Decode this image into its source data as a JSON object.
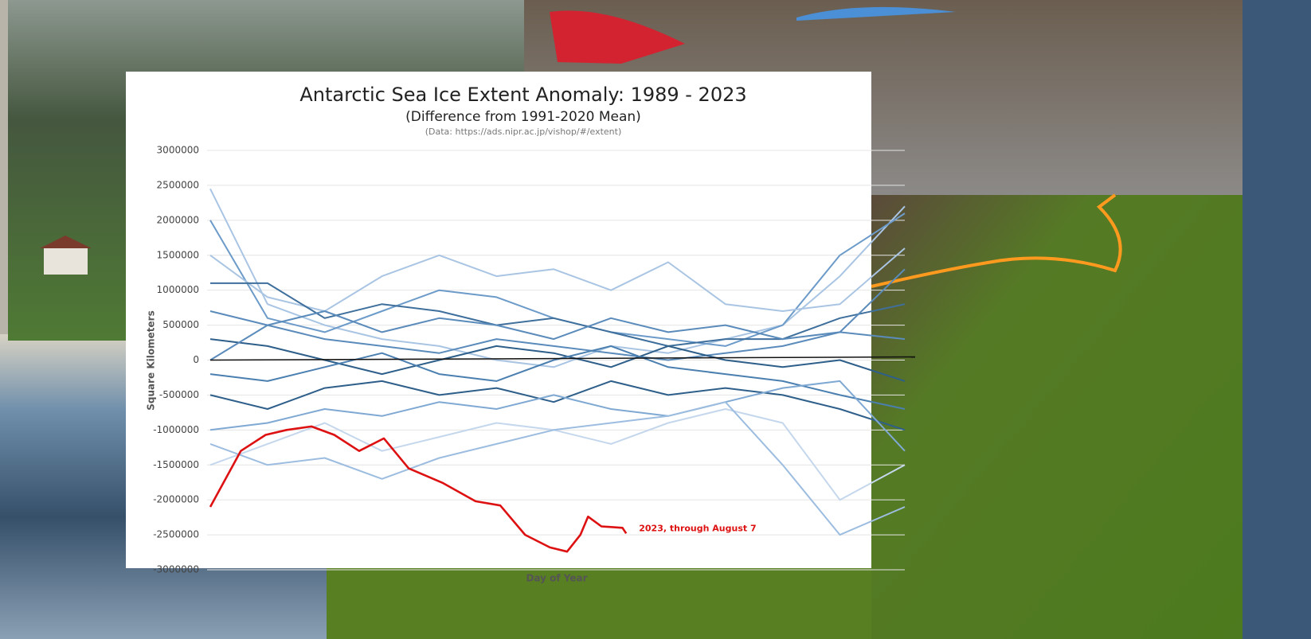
{
  "chart_data": {
    "type": "line",
    "title": "Antarctic Sea Ice Extent Anomaly: 1989 - 2023",
    "subtitle": "(Difference from 1991-2020 Mean)",
    "source": "(Data: https://ads.nipr.ac.jp/vishop/#/extent)",
    "x_label": "Day of Year",
    "y_label": "Square Kilometers",
    "annotation": "2023, through August 7",
    "xlim": [
      1,
      365
    ],
    "ylim": [
      -3000000,
      3000000
    ],
    "yticks": [
      -3000000,
      -2500000,
      -2000000,
      -1500000,
      -1000000,
      -500000,
      0,
      500000,
      1000000,
      1500000,
      2000000,
      2500000,
      3000000
    ],
    "grid": true,
    "x": [
      1,
      31,
      61,
      91,
      121,
      151,
      181,
      211,
      241,
      271,
      301,
      331,
      365
    ],
    "series": [
      {
        "color": "#a9c5e3",
        "values": [
          2450000,
          800000,
          500000,
          300000,
          200000,
          0,
          -100000,
          200000,
          100000,
          300000,
          500000,
          1200000,
          2200000
        ]
      },
      {
        "color": "#6c9bc9",
        "values": [
          2000000,
          600000,
          400000,
          700000,
          1000000,
          900000,
          600000,
          400000,
          300000,
          200000,
          500000,
          1500000,
          2100000
        ]
      },
      {
        "color": "#a9c5e3",
        "values": [
          1500000,
          900000,
          700000,
          1200000,
          1500000,
          1200000,
          1300000,
          1000000,
          1400000,
          800000,
          700000,
          800000,
          1600000
        ]
      },
      {
        "color": "#3f6f9c",
        "values": [
          1100000,
          1100000,
          600000,
          800000,
          700000,
          500000,
          600000,
          400000,
          200000,
          300000,
          300000,
          600000,
          800000
        ]
      },
      {
        "color": "#5a8bbb",
        "values": [
          700000,
          500000,
          300000,
          200000,
          100000,
          300000,
          200000,
          100000,
          0,
          100000,
          200000,
          400000,
          300000
        ]
      },
      {
        "color": "#2e5f8a",
        "values": [
          300000,
          200000,
          0,
          -200000,
          0,
          200000,
          100000,
          -100000,
          200000,
          0,
          -100000,
          0,
          -300000
        ]
      },
      {
        "color": "#4a7fb0",
        "values": [
          -200000,
          -300000,
          -100000,
          100000,
          -200000,
          -300000,
          0,
          200000,
          -100000,
          -200000,
          -300000,
          -500000,
          -700000
        ]
      },
      {
        "color": "#2e5f8a",
        "values": [
          -500000,
          -700000,
          -400000,
          -300000,
          -500000,
          -400000,
          -600000,
          -300000,
          -500000,
          -400000,
          -500000,
          -700000,
          -1000000
        ]
      },
      {
        "color": "#7fa9d3",
        "values": [
          -1000000,
          -900000,
          -700000,
          -800000,
          -600000,
          -700000,
          -500000,
          -700000,
          -800000,
          -600000,
          -400000,
          -300000,
          -1300000
        ]
      },
      {
        "color": "#c5d7ec",
        "values": [
          -1500000,
          -1200000,
          -900000,
          -1300000,
          -1100000,
          -900000,
          -1000000,
          -1200000,
          -900000,
          -700000,
          -900000,
          -2000000,
          -1500000
        ]
      },
      {
        "color": "#9dbde0",
        "values": [
          -1200000,
          -1500000,
          -1400000,
          -1700000,
          -1400000,
          -1200000,
          -1000000,
          -900000,
          -800000,
          -600000,
          -1500000,
          -2500000,
          -2100000
        ]
      },
      {
        "color": "#5a8bbb",
        "values": [
          0,
          500000,
          700000,
          400000,
          600000,
          500000,
          300000,
          600000,
          400000,
          500000,
          300000,
          400000,
          1300000
        ]
      },
      {
        "color": "#dd1111",
        "x": [
          1,
          17,
          30,
          41,
          54,
          66,
          79,
          92,
          105,
          123,
          140,
          153,
          166,
          179,
          188,
          195,
          199,
          206,
          217,
          219
        ],
        "values": [
          -2100000,
          -1300000,
          -1070000,
          -1000000,
          -950000,
          -1070000,
          -1300000,
          -1120000,
          -1550000,
          -1760000,
          -2020000,
          -2080000,
          -2500000,
          -2680000,
          -2740000,
          -2500000,
          -2240000,
          -2380000,
          -2400000,
          -2480000
        ]
      }
    ]
  }
}
